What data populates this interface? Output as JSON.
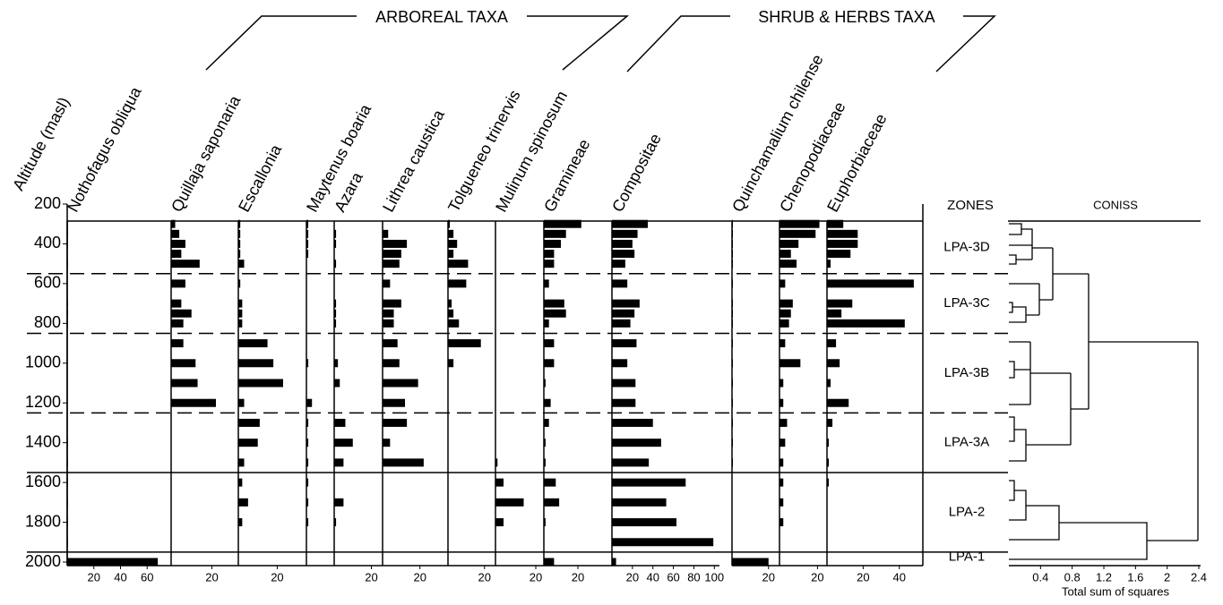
{
  "chart_data": {
    "type": "pollen",
    "y_label": "Altitude (masl)",
    "ylim": [
      200,
      2000
    ],
    "yticks": [
      200,
      400,
      600,
      800,
      1000,
      1200,
      1400,
      1600,
      1800,
      2000
    ],
    "altitudes": [
      300,
      350,
      400,
      450,
      500,
      600,
      700,
      750,
      800,
      900,
      1000,
      1100,
      1200,
      1300,
      1400,
      1500,
      1600,
      1700,
      1800,
      1900,
      2000
    ],
    "groups": [
      {
        "label": "ARBOREAL TAXA"
      },
      {
        "label": "SHRUB & HERBS TAXA"
      }
    ],
    "color": "#000000",
    "series": [
      {
        "name": "Nothofagus obliqua",
        "xlim": [
          0,
          78
        ],
        "xticks": [
          20,
          40,
          60
        ],
        "values": [
          0.5,
          0.5,
          0.5,
          0,
          0.5,
          0,
          0.5,
          0.5,
          0.5,
          0,
          0,
          0,
          0,
          0,
          0.5,
          0.5,
          0.5,
          0.5,
          0.5,
          0.5,
          68
        ]
      },
      {
        "name": "Quillaja saponaria",
        "xlim": [
          0,
          33
        ],
        "xticks": [
          20
        ],
        "values": [
          2,
          4,
          7,
          5,
          14,
          7,
          5,
          10,
          6,
          6,
          12,
          13,
          22,
          0,
          0,
          0,
          0,
          0,
          0,
          0,
          0
        ]
      },
      {
        "name": "Escallonia",
        "xlim": [
          0,
          35
        ],
        "xticks": [
          20
        ],
        "values": [
          1,
          1,
          1,
          1,
          3,
          1,
          2,
          2,
          2,
          15,
          18,
          23,
          3,
          11,
          10,
          3,
          2,
          5,
          2,
          0,
          0
        ]
      },
      {
        "name": "Maytenus boaria",
        "xlim": [
          0,
          15
        ],
        "xticks": [],
        "values": [
          1,
          1,
          1,
          1,
          0,
          0,
          0,
          0,
          0,
          0,
          1,
          0,
          3,
          1,
          1,
          1,
          1,
          1,
          1,
          0,
          0
        ]
      },
      {
        "name": "Azara",
        "xlim": [
          0,
          26
        ],
        "xticks": [
          20
        ],
        "values": [
          0,
          1,
          1,
          0,
          1,
          0,
          1,
          1,
          1,
          0,
          2,
          3,
          0,
          6,
          10,
          5,
          0,
          5,
          1,
          0,
          0
        ]
      },
      {
        "name": "Lithrea caustica",
        "xlim": [
          0,
          35
        ],
        "xticks": [
          20
        ],
        "values": [
          0,
          3,
          13,
          10,
          9,
          4,
          10,
          6,
          6,
          8,
          9,
          19,
          12,
          13,
          4,
          22,
          0,
          0,
          0,
          0,
          0
        ]
      },
      {
        "name": "Tolgueneo trinervis",
        "xlim": [
          0,
          26
        ],
        "xticks": [
          20
        ],
        "values": [
          1,
          3,
          5,
          3,
          11,
          10,
          2,
          3,
          6,
          18,
          3,
          0,
          0,
          0,
          0,
          0,
          0,
          0,
          0,
          0,
          0
        ]
      },
      {
        "name": "Mulinum spinosum",
        "xlim": [
          0,
          24
        ],
        "xticks": [
          20
        ],
        "values": [
          0,
          0,
          0,
          0,
          0,
          0,
          0,
          0,
          0,
          0,
          0,
          0,
          0,
          0,
          0,
          1,
          4,
          14,
          4,
          0,
          0
        ]
      },
      {
        "name": "Gramineae",
        "xlim": [
          0,
          40
        ],
        "xticks": [
          20
        ],
        "values": [
          22,
          13,
          10,
          6,
          6,
          3,
          12,
          13,
          3,
          6,
          6,
          1,
          4,
          3,
          1,
          1,
          7,
          9,
          1,
          0,
          6
        ]
      },
      {
        "name": "Compositae",
        "xlim": [
          0,
          105
        ],
        "xticks": [
          20,
          40,
          60,
          80,
          100
        ],
        "values": [
          35,
          25,
          20,
          22,
          13,
          15,
          27,
          22,
          18,
          24,
          15,
          23,
          23,
          40,
          48,
          36,
          72,
          53,
          63,
          99,
          4
        ]
      },
      {
        "name": "Quinchamalium chilense",
        "xlim": [
          0,
          26
        ],
        "xticks": [
          20
        ],
        "values": [
          0.5,
          0.5,
          0.5,
          0.5,
          0.5,
          0.5,
          0.5,
          0.5,
          0.5,
          0.5,
          0.5,
          0.5,
          0.5,
          0.5,
          0.5,
          0.5,
          0,
          0,
          0,
          0,
          20
        ]
      },
      {
        "name": "Chenopodiaceae",
        "xlim": [
          0,
          25
        ],
        "xticks": [
          20
        ],
        "values": [
          21,
          19,
          10,
          6,
          9,
          3,
          7,
          6,
          5,
          3,
          11,
          2,
          2,
          4,
          3,
          2,
          2,
          2,
          2,
          0,
          0
        ]
      },
      {
        "name": "Euphorbiaceae",
        "xlim": [
          0,
          53
        ],
        "xticks": [
          20,
          40
        ],
        "values": [
          9,
          17,
          17,
          13,
          2,
          48,
          14,
          8,
          43,
          5,
          7,
          2,
          12,
          3,
          1,
          1,
          1,
          0,
          0,
          0,
          0
        ]
      }
    ],
    "zones": {
      "title": "ZONES",
      "labels": [
        "LPA-3D",
        "LPA-3C",
        "LPA-3B",
        "LPA-3A",
        "LPA-2",
        "LPA-1"
      ],
      "boundaries": [
        550,
        850,
        1250,
        1550,
        1950
      ],
      "boundary_styles": [
        "dashed",
        "dashed",
        "dashed",
        "solid",
        "solid"
      ]
    },
    "coniss": {
      "title": "CONISS",
      "x_label": "Total sum of squares",
      "xlim": [
        0,
        2.4
      ],
      "xticks": [
        0.4,
        0.8,
        1.2,
        1.6,
        2.0,
        2.4
      ]
    }
  }
}
